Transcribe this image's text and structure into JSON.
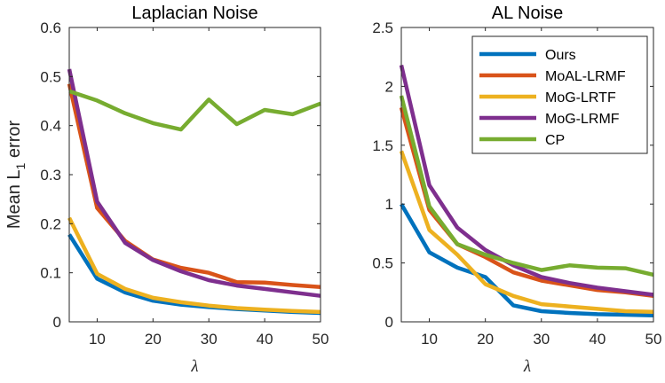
{
  "chart_data": [
    {
      "type": "line",
      "title": "Laplacian Noise",
      "xlabel": "λ",
      "ylabel": "Mean L1 error",
      "xlim": [
        5,
        50
      ],
      "ylim": [
        0,
        0.6
      ],
      "xticks": [
        10,
        20,
        30,
        40,
        50
      ],
      "yticks": [
        0,
        0.1,
        0.2,
        0.3,
        0.4,
        0.5,
        0.6
      ],
      "xtick_labels": [
        "10",
        "20",
        "30",
        "40",
        "50"
      ],
      "ytick_labels": [
        "0",
        "0.1",
        "0.2",
        "0.3",
        "0.4",
        "0.5",
        "0.6"
      ],
      "x": [
        5,
        10,
        15,
        20,
        25,
        30,
        35,
        40,
        45,
        50
      ],
      "series": [
        {
          "name": "Ours",
          "color": "#0072BD",
          "values": [
            0.178,
            0.088,
            0.06,
            0.043,
            0.035,
            0.03,
            0.026,
            0.023,
            0.02,
            0.018
          ]
        },
        {
          "name": "MoAL-LRMF",
          "color": "#D95319",
          "values": [
            0.485,
            0.232,
            0.165,
            0.127,
            0.11,
            0.1,
            0.081,
            0.08,
            0.075,
            0.071
          ]
        },
        {
          "name": "MoG-LRTF",
          "color": "#EDB120",
          "values": [
            0.212,
            0.098,
            0.067,
            0.049,
            0.04,
            0.033,
            0.028,
            0.025,
            0.022,
            0.02
          ]
        },
        {
          "name": "MoG-LRMF",
          "color": "#7E2F8E",
          "values": [
            0.515,
            0.245,
            0.161,
            0.126,
            0.103,
            0.085,
            0.074,
            0.067,
            0.06,
            0.053
          ]
        },
        {
          "name": "CP",
          "color": "#77AC30",
          "values": [
            0.47,
            0.451,
            0.425,
            0.405,
            0.392,
            0.453,
            0.403,
            0.432,
            0.423,
            0.445
          ]
        }
      ]
    },
    {
      "type": "line",
      "title": "AL Noise",
      "xlabel": "λ",
      "ylabel": "",
      "xlim": [
        5,
        50
      ],
      "ylim": [
        0,
        2.5
      ],
      "xticks": [
        10,
        20,
        30,
        40,
        50
      ],
      "yticks": [
        0,
        0.5,
        1,
        1.5,
        2,
        2.5
      ],
      "xtick_labels": [
        "10",
        "20",
        "30",
        "40",
        "50"
      ],
      "ytick_labels": [
        "0",
        "0.5",
        "1",
        "1.5",
        "2",
        "2.5"
      ],
      "x": [
        5,
        10,
        15,
        20,
        25,
        30,
        35,
        40,
        45,
        50
      ],
      "legend_position": "top-right",
      "series": [
        {
          "name": "Ours",
          "color": "#0072BD",
          "values": [
            1.0,
            0.59,
            0.46,
            0.38,
            0.14,
            0.09,
            0.075,
            0.065,
            0.06,
            0.055
          ]
        },
        {
          "name": "MoAL-LRMF",
          "color": "#D95319",
          "values": [
            1.82,
            0.95,
            0.66,
            0.55,
            0.42,
            0.35,
            0.31,
            0.27,
            0.25,
            0.22
          ]
        },
        {
          "name": "MoG-LRTF",
          "color": "#EDB120",
          "values": [
            1.45,
            0.78,
            0.57,
            0.32,
            0.22,
            0.15,
            0.13,
            0.11,
            0.09,
            0.085
          ]
        },
        {
          "name": "MoG-LRMF",
          "color": "#7E2F8E",
          "values": [
            2.18,
            1.16,
            0.8,
            0.61,
            0.48,
            0.38,
            0.33,
            0.29,
            0.26,
            0.23
          ]
        },
        {
          "name": "CP",
          "color": "#77AC30",
          "values": [
            1.92,
            0.98,
            0.66,
            0.57,
            0.5,
            0.44,
            0.48,
            0.46,
            0.455,
            0.4
          ]
        }
      ]
    }
  ]
}
